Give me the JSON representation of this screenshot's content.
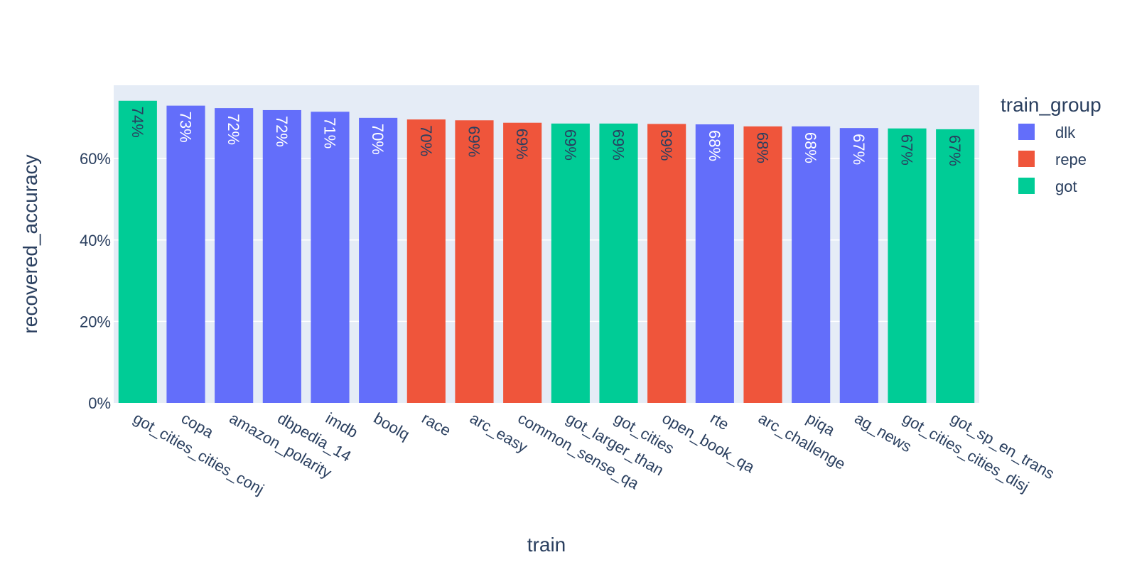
{
  "chart_data": {
    "type": "bar",
    "title": "",
    "xlabel": "train",
    "ylabel": "recovered_accuracy",
    "ylim": [
      0,
      0.78
    ],
    "yticks": [
      0,
      0.2,
      0.4,
      0.6
    ],
    "ytick_labels": [
      "0%",
      "20%",
      "40%",
      "60%"
    ],
    "grid": true,
    "legend": {
      "title": "train_group",
      "position": "right",
      "entries": [
        {
          "name": "dlk",
          "color": "#636efa"
        },
        {
          "name": "repe",
          "color": "#ef553b"
        },
        {
          "name": "got",
          "color": "#00cc96"
        }
      ]
    },
    "bars": [
      {
        "category": "got_cities_cities_conj",
        "group": "got",
        "value": 0.742,
        "label": "74%"
      },
      {
        "category": "copa",
        "group": "dlk",
        "value": 0.73,
        "label": "73%"
      },
      {
        "category": "amazon_polarity",
        "group": "dlk",
        "value": 0.724,
        "label": "72%"
      },
      {
        "category": "dbpedia_14",
        "group": "dlk",
        "value": 0.719,
        "label": "72%"
      },
      {
        "category": "imdb",
        "group": "dlk",
        "value": 0.715,
        "label": "71%"
      },
      {
        "category": "boolq",
        "group": "dlk",
        "value": 0.7,
        "label": "70%"
      },
      {
        "category": "race",
        "group": "repe",
        "value": 0.696,
        "label": "70%"
      },
      {
        "category": "arc_easy",
        "group": "repe",
        "value": 0.694,
        "label": "69%"
      },
      {
        "category": "common_sense_qa",
        "group": "repe",
        "value": 0.688,
        "label": "69%"
      },
      {
        "category": "got_larger_than",
        "group": "got",
        "value": 0.686,
        "label": "69%"
      },
      {
        "category": "got_cities",
        "group": "got",
        "value": 0.686,
        "label": "69%"
      },
      {
        "category": "open_book_qa",
        "group": "repe",
        "value": 0.685,
        "label": "69%"
      },
      {
        "category": "rte",
        "group": "dlk",
        "value": 0.684,
        "label": "68%"
      },
      {
        "category": "arc_challenge",
        "group": "repe",
        "value": 0.679,
        "label": "68%"
      },
      {
        "category": "piqa",
        "group": "dlk",
        "value": 0.679,
        "label": "68%"
      },
      {
        "category": "ag_news",
        "group": "dlk",
        "value": 0.675,
        "label": "67%"
      },
      {
        "category": "got_cities_cities_disj",
        "group": "got",
        "value": 0.674,
        "label": "67%"
      },
      {
        "category": "got_sp_en_trans",
        "group": "got",
        "value": 0.672,
        "label": "67%"
      }
    ]
  }
}
